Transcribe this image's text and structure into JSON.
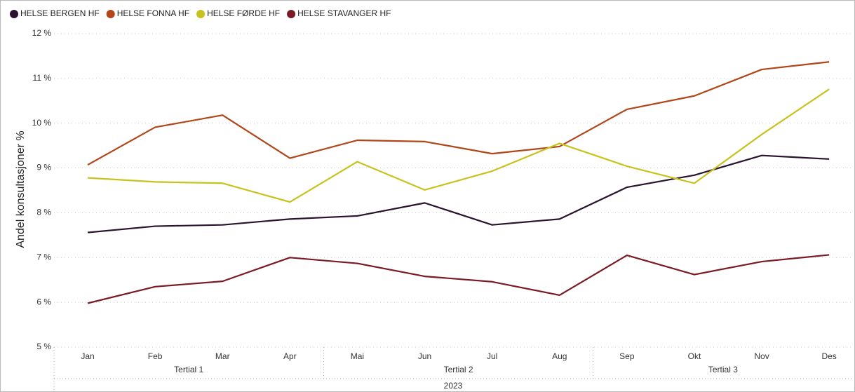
{
  "chart_data": {
    "type": "line",
    "y_label": "Andel konsultasjoner %",
    "categories": [
      "Jan",
      "Feb",
      "Mar",
      "Apr",
      "Mai",
      "Jun",
      "Jul",
      "Aug",
      "Sep",
      "Okt",
      "Nov",
      "Des"
    ],
    "x_groups": [
      "Tertial 1",
      "Tertial 2",
      "Tertial 3"
    ],
    "x_top_group": "2023",
    "series": [
      {
        "name": "HELSE BERGEN HF",
        "color": "#2b1330",
        "values": [
          7.56,
          7.7,
          7.73,
          7.86,
          7.93,
          8.22,
          7.73,
          7.86,
          8.57,
          8.84,
          9.28,
          9.2
        ]
      },
      {
        "name": "HELSE FONNA HF",
        "color": "#b0461a",
        "values": [
          9.07,
          9.91,
          10.18,
          9.22,
          9.62,
          9.59,
          9.32,
          9.48,
          10.31,
          10.61,
          11.2,
          11.37
        ]
      },
      {
        "name": "HELSE FØRDE HF",
        "color": "#c8c21e",
        "values": [
          8.78,
          8.69,
          8.66,
          8.24,
          9.14,
          8.51,
          8.93,
          9.55,
          9.04,
          8.66,
          9.75,
          10.76
        ]
      },
      {
        "name": "HELSE STAVANGER HF",
        "color": "#7a1a24",
        "values": [
          5.98,
          6.35,
          6.47,
          7.0,
          6.87,
          6.58,
          6.46,
          6.16,
          7.05,
          6.62,
          6.91,
          7.06
        ]
      }
    ],
    "ylim": [
      5,
      12
    ],
    "yticks": [
      {
        "value": 5,
        "label": "5 %"
      },
      {
        "value": 6,
        "label": "6 %"
      },
      {
        "value": 7,
        "label": "7 %"
      },
      {
        "value": 8,
        "label": "8 %"
      },
      {
        "value": 9,
        "label": "9 %"
      },
      {
        "value": 10,
        "label": "10 %"
      },
      {
        "value": 11,
        "label": "11 %"
      },
      {
        "value": 12,
        "label": "12 %"
      }
    ],
    "grid": true,
    "legend": "top-left"
  }
}
